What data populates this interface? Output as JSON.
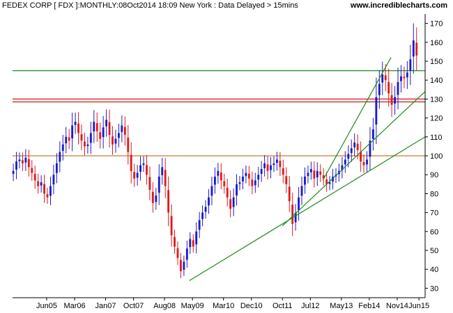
{
  "header": {
    "title": "FEDEX CORP [ FDX ]:MONTHLY:08Oct2014 18:09 New York : Data Delayed > 15mins",
    "site": "www.incrediblecharts.com"
  },
  "chart_data": {
    "type": "candlestick",
    "symbol": "FDX",
    "interval": "monthly",
    "ylim": [
      25,
      175
    ],
    "y_ticks": [
      30,
      40,
      50,
      60,
      70,
      80,
      90,
      100,
      110,
      120,
      130,
      140,
      150,
      160,
      170
    ],
    "x_range": [
      2004.5,
      2015.583
    ],
    "x_ticks": [
      {
        "label": "Jun05",
        "pos": 2005.417
      },
      {
        "label": "Mar06",
        "pos": 2006.167
      },
      {
        "label": "Jan07",
        "pos": 2007.0
      },
      {
        "label": "Oct07",
        "pos": 2007.75
      },
      {
        "label": "Aug08",
        "pos": 2008.583
      },
      {
        "label": "May09",
        "pos": 2009.333
      },
      {
        "label": "Mar10",
        "pos": 2010.167
      },
      {
        "label": "Dec10",
        "pos": 2010.917
      },
      {
        "label": "Oct11",
        "pos": 2011.75
      },
      {
        "label": "Jul12",
        "pos": 2012.5
      },
      {
        "label": "May13",
        "pos": 2013.333
      },
      {
        "label": "Feb14",
        "pos": 2014.083
      },
      {
        "label": "Nov14",
        "pos": 2014.833
      },
      {
        "label": "Jun15",
        "pos": 2015.417
      }
    ],
    "closes": [
      92,
      97,
      98,
      96,
      99,
      94,
      91,
      87,
      84,
      86,
      80,
      78,
      84,
      90,
      96,
      102,
      106,
      110,
      108,
      116,
      118,
      112,
      108,
      105,
      106,
      112,
      118,
      113,
      109,
      115,
      119,
      111,
      106,
      109,
      112,
      116,
      111,
      102,
      92,
      88,
      91,
      95,
      96,
      90,
      82,
      75,
      79,
      89,
      94,
      84,
      70,
      58,
      52,
      46,
      39,
      44,
      51,
      56,
      52,
      60,
      66,
      70,
      73,
      78,
      84,
      89,
      92,
      87,
      84,
      78,
      72,
      78,
      85,
      86,
      89,
      91,
      88,
      84,
      87,
      90,
      93,
      96,
      92,
      95,
      96,
      98,
      94,
      90,
      85,
      76,
      64,
      70,
      78,
      84,
      89,
      91,
      93,
      88,
      92,
      90,
      88,
      85,
      86,
      89,
      90,
      92,
      95,
      98,
      101,
      104,
      107,
      103,
      97,
      95,
      98,
      108,
      114,
      131,
      138,
      143,
      140,
      133,
      127,
      131,
      139,
      142,
      141,
      144,
      151,
      161,
      153
    ],
    "horizontal_lines": [
      {
        "value": 100,
        "color": "#c87a32"
      },
      {
        "value": 145,
        "color": "#1f8a1f"
      },
      {
        "value": 130,
        "color": "#cc1a1a"
      },
      {
        "value": 128.5,
        "color": "#cc1a1a"
      }
    ],
    "trendlines": [
      {
        "from": [
          2009.25,
          34
        ],
        "to": [
          2015.583,
          110
        ],
        "color": "#1f8a1f"
      },
      {
        "from": [
          2011.75,
          63
        ],
        "to": [
          2015.583,
          134
        ],
        "color": "#1f8a1f"
      },
      {
        "from": [
          2012.833,
          87
        ],
        "to": [
          2014.667,
          152
        ],
        "color": "#1f8a1f"
      }
    ],
    "colors": {
      "up": "#1a1acc",
      "down": "#e01a1a",
      "axis": "#000000"
    }
  }
}
